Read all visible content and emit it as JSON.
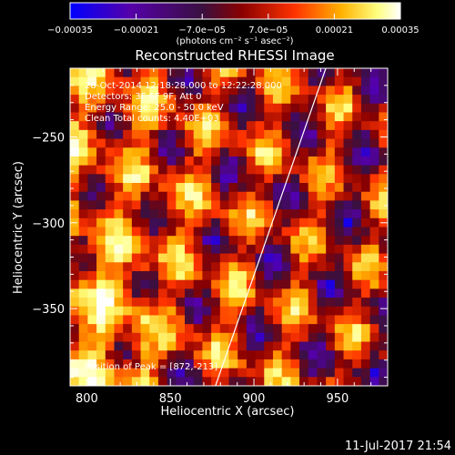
{
  "chart_data": {
    "type": "heatmap",
    "title": "Reconstructed RHESSI Image",
    "xlabel": "Heliocentric X (arcsec)",
    "ylabel": "Heliocentric Y (arcsec)",
    "xlim": [
      790,
      980
    ],
    "ylim": [
      -395,
      -210
    ],
    "x_ticks": [
      800,
      850,
      900,
      950
    ],
    "x_tick_labels": [
      "800",
      "850",
      "900",
      "950"
    ],
    "y_ticks": [
      -250,
      -300,
      -350
    ],
    "y_tick_labels": [
      "−250",
      "−300",
      "−350"
    ],
    "colorbar": {
      "range": [
        -0.00035,
        0.00035
      ],
      "tick_values": [
        -0.00035,
        -0.00021,
        -7e-05,
        7e-05,
        0.00021,
        0.00035
      ],
      "tick_labels": [
        "−0.00035",
        "−0.00021",
        "−7.0e−05",
        "7.0e−05",
        "0.00021",
        "0.00035"
      ],
      "unit_label": "(photons cm⁻² s⁻¹ asec⁻²)",
      "colormap": [
        "#0000ff",
        "#5500aa",
        "#3a1040",
        "#8a0000",
        "#ff3300",
        "#ffb000",
        "#ffff80",
        "#ffffff"
      ]
    },
    "limb_line": {
      "points": [
        [
          877,
          -395
        ],
        [
          943,
          -210
        ]
      ],
      "color": "#ffffff"
    },
    "peak": {
      "x": 872,
      "y": -213
    },
    "grid": false
  },
  "annotations": {
    "time_range": "28-Oct-2014 12:18:28.000 to 12:22:28.000",
    "detectors": "Detectors: 3F 6F 9F, Att 0",
    "energy_range": "Energy Range: 25.0 - 50.0 keV",
    "method_counts": "Clean     Total counts: 4.40E+03",
    "peak_position": "Position of Peak = [872,-213]"
  },
  "footer": {
    "timestamp": "11-Jul-2017 21:54"
  }
}
